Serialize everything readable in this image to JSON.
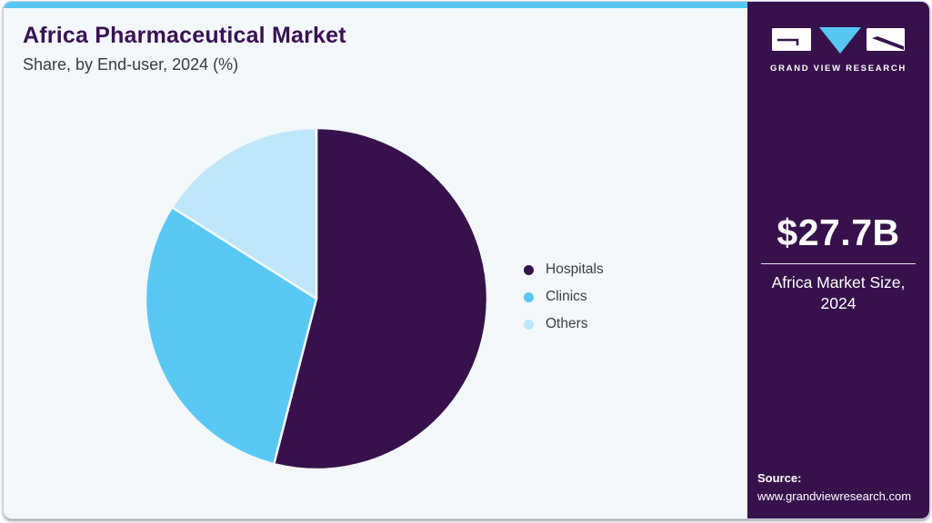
{
  "header": {
    "title": "Africa Pharmaceutical Market",
    "subtitle": "Share, by End-user, 2024 (%)"
  },
  "chart_data": {
    "type": "pie",
    "title": "Africa Pharmaceutical Market Share, by End-user, 2024 (%)",
    "unit": "percent",
    "start_angle_deg": 0,
    "direction": "clockwise",
    "legend_position": "right",
    "segments": [
      {
        "label": "Hospitals",
        "value": 54,
        "color": "#36114b"
      },
      {
        "label": "Clinics",
        "value": 30,
        "color": "#5ac8f5"
      },
      {
        "label": "Others",
        "value": 16,
        "color": "#bee7fa"
      }
    ]
  },
  "sidebar": {
    "brand_name": "GRAND VIEW RESEARCH",
    "market_size_value": "$27.7B",
    "market_size_label": "Africa Market Size, 2024",
    "source_label": "Source:",
    "source_url": "www.grandviewresearch.com"
  },
  "colors": {
    "accent_bar": "#56c7f2",
    "panel_background": "#f3f8fb",
    "sidebar_background": "#36114b",
    "title_text": "#3a1155",
    "body_text": "#3e3e45"
  }
}
